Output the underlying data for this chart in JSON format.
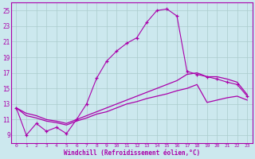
{
  "xlabel": "Windchill (Refroidissement éolien,°C)",
  "background_color": "#cce8ee",
  "grid_color": "#aacccc",
  "line_color": "#aa00aa",
  "xlim": [
    -0.5,
    23.5
  ],
  "ylim": [
    8.0,
    26.0
  ],
  "yticks": [
    9,
    11,
    13,
    15,
    17,
    19,
    21,
    23,
    25
  ],
  "xticks": [
    0,
    1,
    2,
    3,
    4,
    5,
    6,
    7,
    8,
    9,
    10,
    11,
    12,
    13,
    14,
    15,
    16,
    17,
    18,
    19,
    20,
    21,
    22,
    23
  ],
  "main_x": [
    0,
    1,
    2,
    3,
    4,
    5,
    6,
    7,
    8,
    9,
    10,
    11,
    12,
    13,
    14,
    15,
    16,
    17,
    18,
    19,
    20,
    21,
    22,
    23
  ],
  "main_y": [
    12.5,
    9.0,
    10.5,
    9.5,
    10.0,
    9.2,
    11.0,
    13.0,
    16.3,
    18.5,
    19.8,
    20.8,
    21.5,
    23.5,
    25.0,
    25.2,
    24.3,
    17.2,
    16.8,
    16.5,
    16.2,
    15.8,
    15.5,
    14.0
  ],
  "upper_x": [
    0,
    1,
    2,
    3,
    4,
    5,
    6,
    7,
    8,
    9,
    10,
    11,
    12,
    13,
    14,
    15,
    16,
    17,
    18,
    19,
    20,
    21,
    22,
    23
  ],
  "upper_y": [
    12.5,
    11.8,
    11.5,
    11.0,
    10.8,
    10.5,
    11.0,
    11.5,
    12.0,
    12.5,
    13.0,
    13.5,
    14.0,
    14.5,
    15.0,
    15.5,
    16.0,
    16.8,
    17.0,
    16.5,
    16.5,
    16.2,
    15.8,
    14.2
  ],
  "lower_x": [
    0,
    1,
    2,
    3,
    4,
    5,
    6,
    7,
    8,
    9,
    10,
    11,
    12,
    13,
    14,
    15,
    16,
    17,
    18,
    19,
    20,
    21,
    22,
    23
  ],
  "lower_y": [
    12.5,
    11.5,
    11.2,
    10.8,
    10.6,
    10.3,
    10.8,
    11.2,
    11.7,
    12.0,
    12.5,
    13.0,
    13.3,
    13.7,
    14.0,
    14.3,
    14.7,
    15.0,
    15.5,
    13.2,
    13.5,
    13.8,
    14.0,
    13.5
  ]
}
